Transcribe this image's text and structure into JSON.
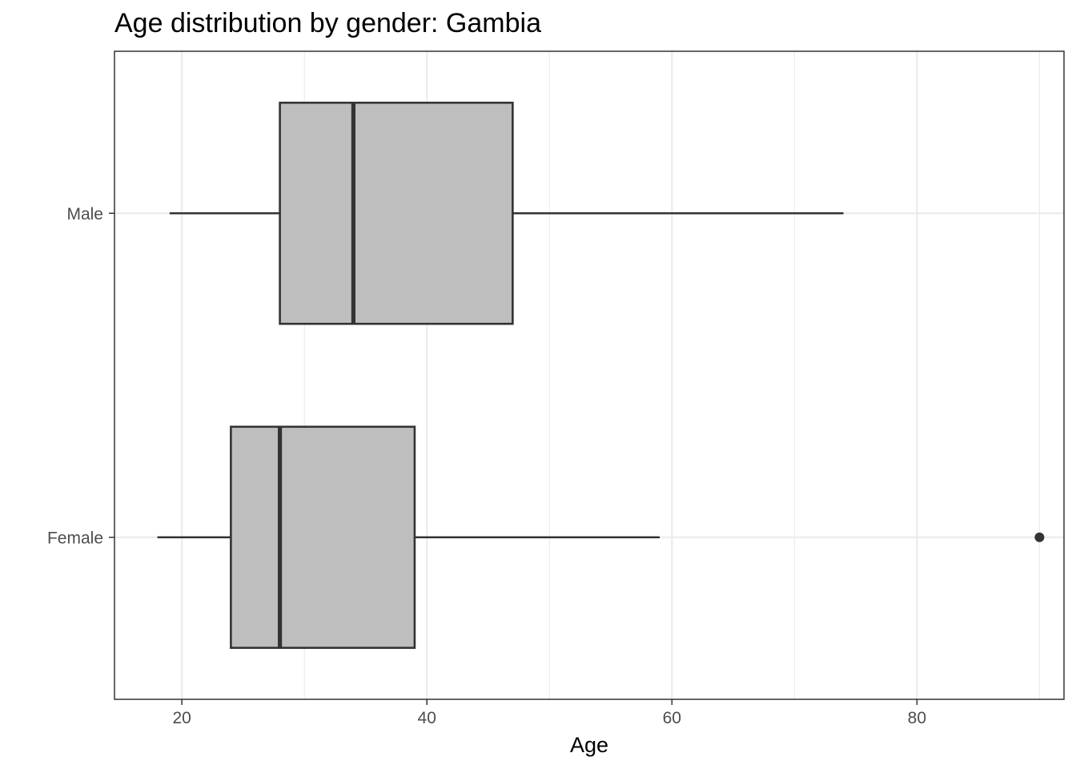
{
  "chart_data": {
    "type": "boxplot",
    "orientation": "horizontal",
    "title": "Age distribution by gender: Gambia",
    "xlabel": "Age",
    "ylabel": "",
    "xlim": [
      14.5,
      92
    ],
    "x_ticks": [
      20,
      40,
      60,
      80
    ],
    "x_tick_labels": [
      "20",
      "40",
      "60",
      "80"
    ],
    "categories": [
      "Male",
      "Female"
    ],
    "boxes": [
      {
        "category": "Male",
        "whisker_low": 19,
        "q1": 28,
        "median": 34,
        "q3": 47,
        "whisker_high": 74,
        "outliers": []
      },
      {
        "category": "Female",
        "whisker_low": 18,
        "q1": 24,
        "median": 28,
        "q3": 39,
        "whisker_high": 59,
        "outliers": [
          90
        ]
      }
    ],
    "grid": true,
    "theme": "bw",
    "colors": {
      "box_fill": "#bebebe",
      "box_stroke": "#333333",
      "grid": "#ebebeb",
      "panel_border": "#333333"
    }
  }
}
